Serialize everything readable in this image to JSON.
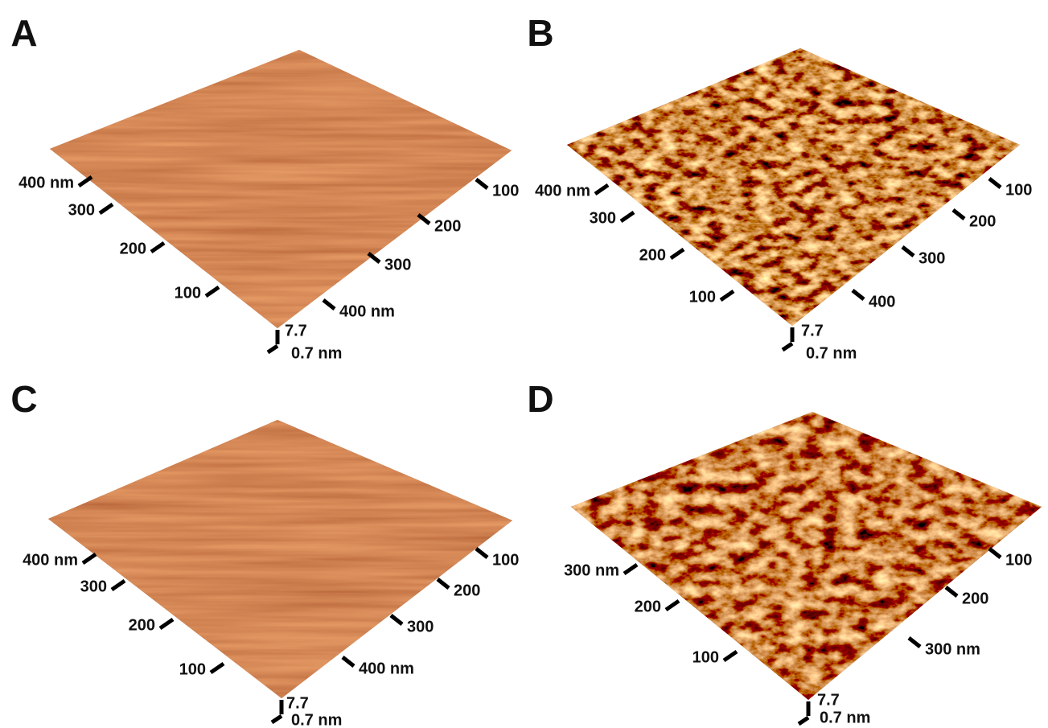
{
  "panels": [
    {
      "label": "A",
      "left_axis": [
        "400 nm",
        "300",
        "200",
        "100"
      ],
      "right_axis": [
        "400 nm",
        "300",
        "200",
        "100"
      ],
      "z_axis": [
        "7.7",
        "0.7 nm"
      ]
    },
    {
      "label": "B",
      "left_axis": [
        "400 nm",
        "300",
        "200",
        "100"
      ],
      "right_axis": [
        "400",
        "300",
        "200",
        "100"
      ],
      "z_axis": [
        "7.7",
        "0.7 nm"
      ]
    },
    {
      "label": "C",
      "left_axis": [
        "400 nm",
        "300",
        "200",
        "100"
      ],
      "right_axis": [
        "400 nm",
        "300",
        "200",
        "100"
      ],
      "z_axis": [
        "7.7",
        "0.7 nm"
      ]
    },
    {
      "label": "D",
      "left_axis": [
        "300 nm",
        "200",
        "100"
      ],
      "right_axis": [
        "300 nm",
        "200",
        "100"
      ],
      "z_axis": [
        "7.7",
        "0.7 nm"
      ]
    }
  ]
}
